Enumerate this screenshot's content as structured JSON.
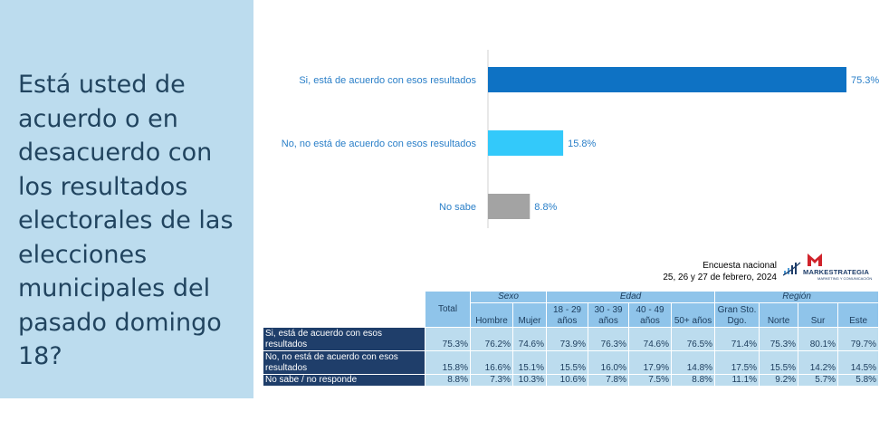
{
  "question": "Está usted de acuerdo o en desacuerdo con los resultados electorales de las elecciones municipales del pasado domingo 18?",
  "chart_data": {
    "type": "bar",
    "orientation": "horizontal",
    "categories": [
      "Si, está de acuerdo con esos resultados",
      "No, no está de acuerdo con esos resultados",
      "No sabe"
    ],
    "values": [
      75.3,
      15.8,
      8.8
    ],
    "value_labels": [
      "75.3%",
      "15.8%",
      "8.8%"
    ],
    "colors": [
      "#0e72c4",
      "#33c9fa",
      "#a3a3a3"
    ],
    "xlim": [
      0,
      75.3
    ]
  },
  "survey_note": {
    "line1": "Encuesta nacional",
    "line2": "25, 26 y 27 de febrero, 2024"
  },
  "logo": {
    "name": "MARKESTRATEGIA",
    "tagline": "MARKETING Y COMUNICACIÓN",
    "colors": [
      "#d0232b",
      "#1f3e6a"
    ]
  },
  "table": {
    "total_header": "Total",
    "groups": [
      "Sexo",
      "Edad",
      "Región"
    ],
    "columns": [
      "Hombre",
      "Mujer",
      "18 - 29 años",
      "30 - 39 años",
      "40 - 49 años",
      "50+ años",
      "Gran Sto. Dgo.",
      "Norte",
      "Sur",
      "Este"
    ],
    "rows": [
      {
        "label": "Si, está de acuerdo con esos resultados",
        "values": [
          "75.3%",
          "76.2%",
          "74.6%",
          "73.9%",
          "76.3%",
          "74.6%",
          "76.5%",
          "71.4%",
          "75.3%",
          "80.1%",
          "79.7%"
        ]
      },
      {
        "label": "No, no está de acuerdo con esos resultados",
        "values": [
          "15.8%",
          "16.6%",
          "15.1%",
          "15.5%",
          "16.0%",
          "17.9%",
          "14.8%",
          "17.5%",
          "15.5%",
          "14.2%",
          "14.5%"
        ]
      },
      {
        "label": "No sabe / no responde",
        "values": [
          "8.8%",
          "7.3%",
          "10.3%",
          "10.6%",
          "7.8%",
          "7.5%",
          "8.8%",
          "11.1%",
          "9.2%",
          "5.7%",
          "5.8%"
        ]
      }
    ]
  }
}
